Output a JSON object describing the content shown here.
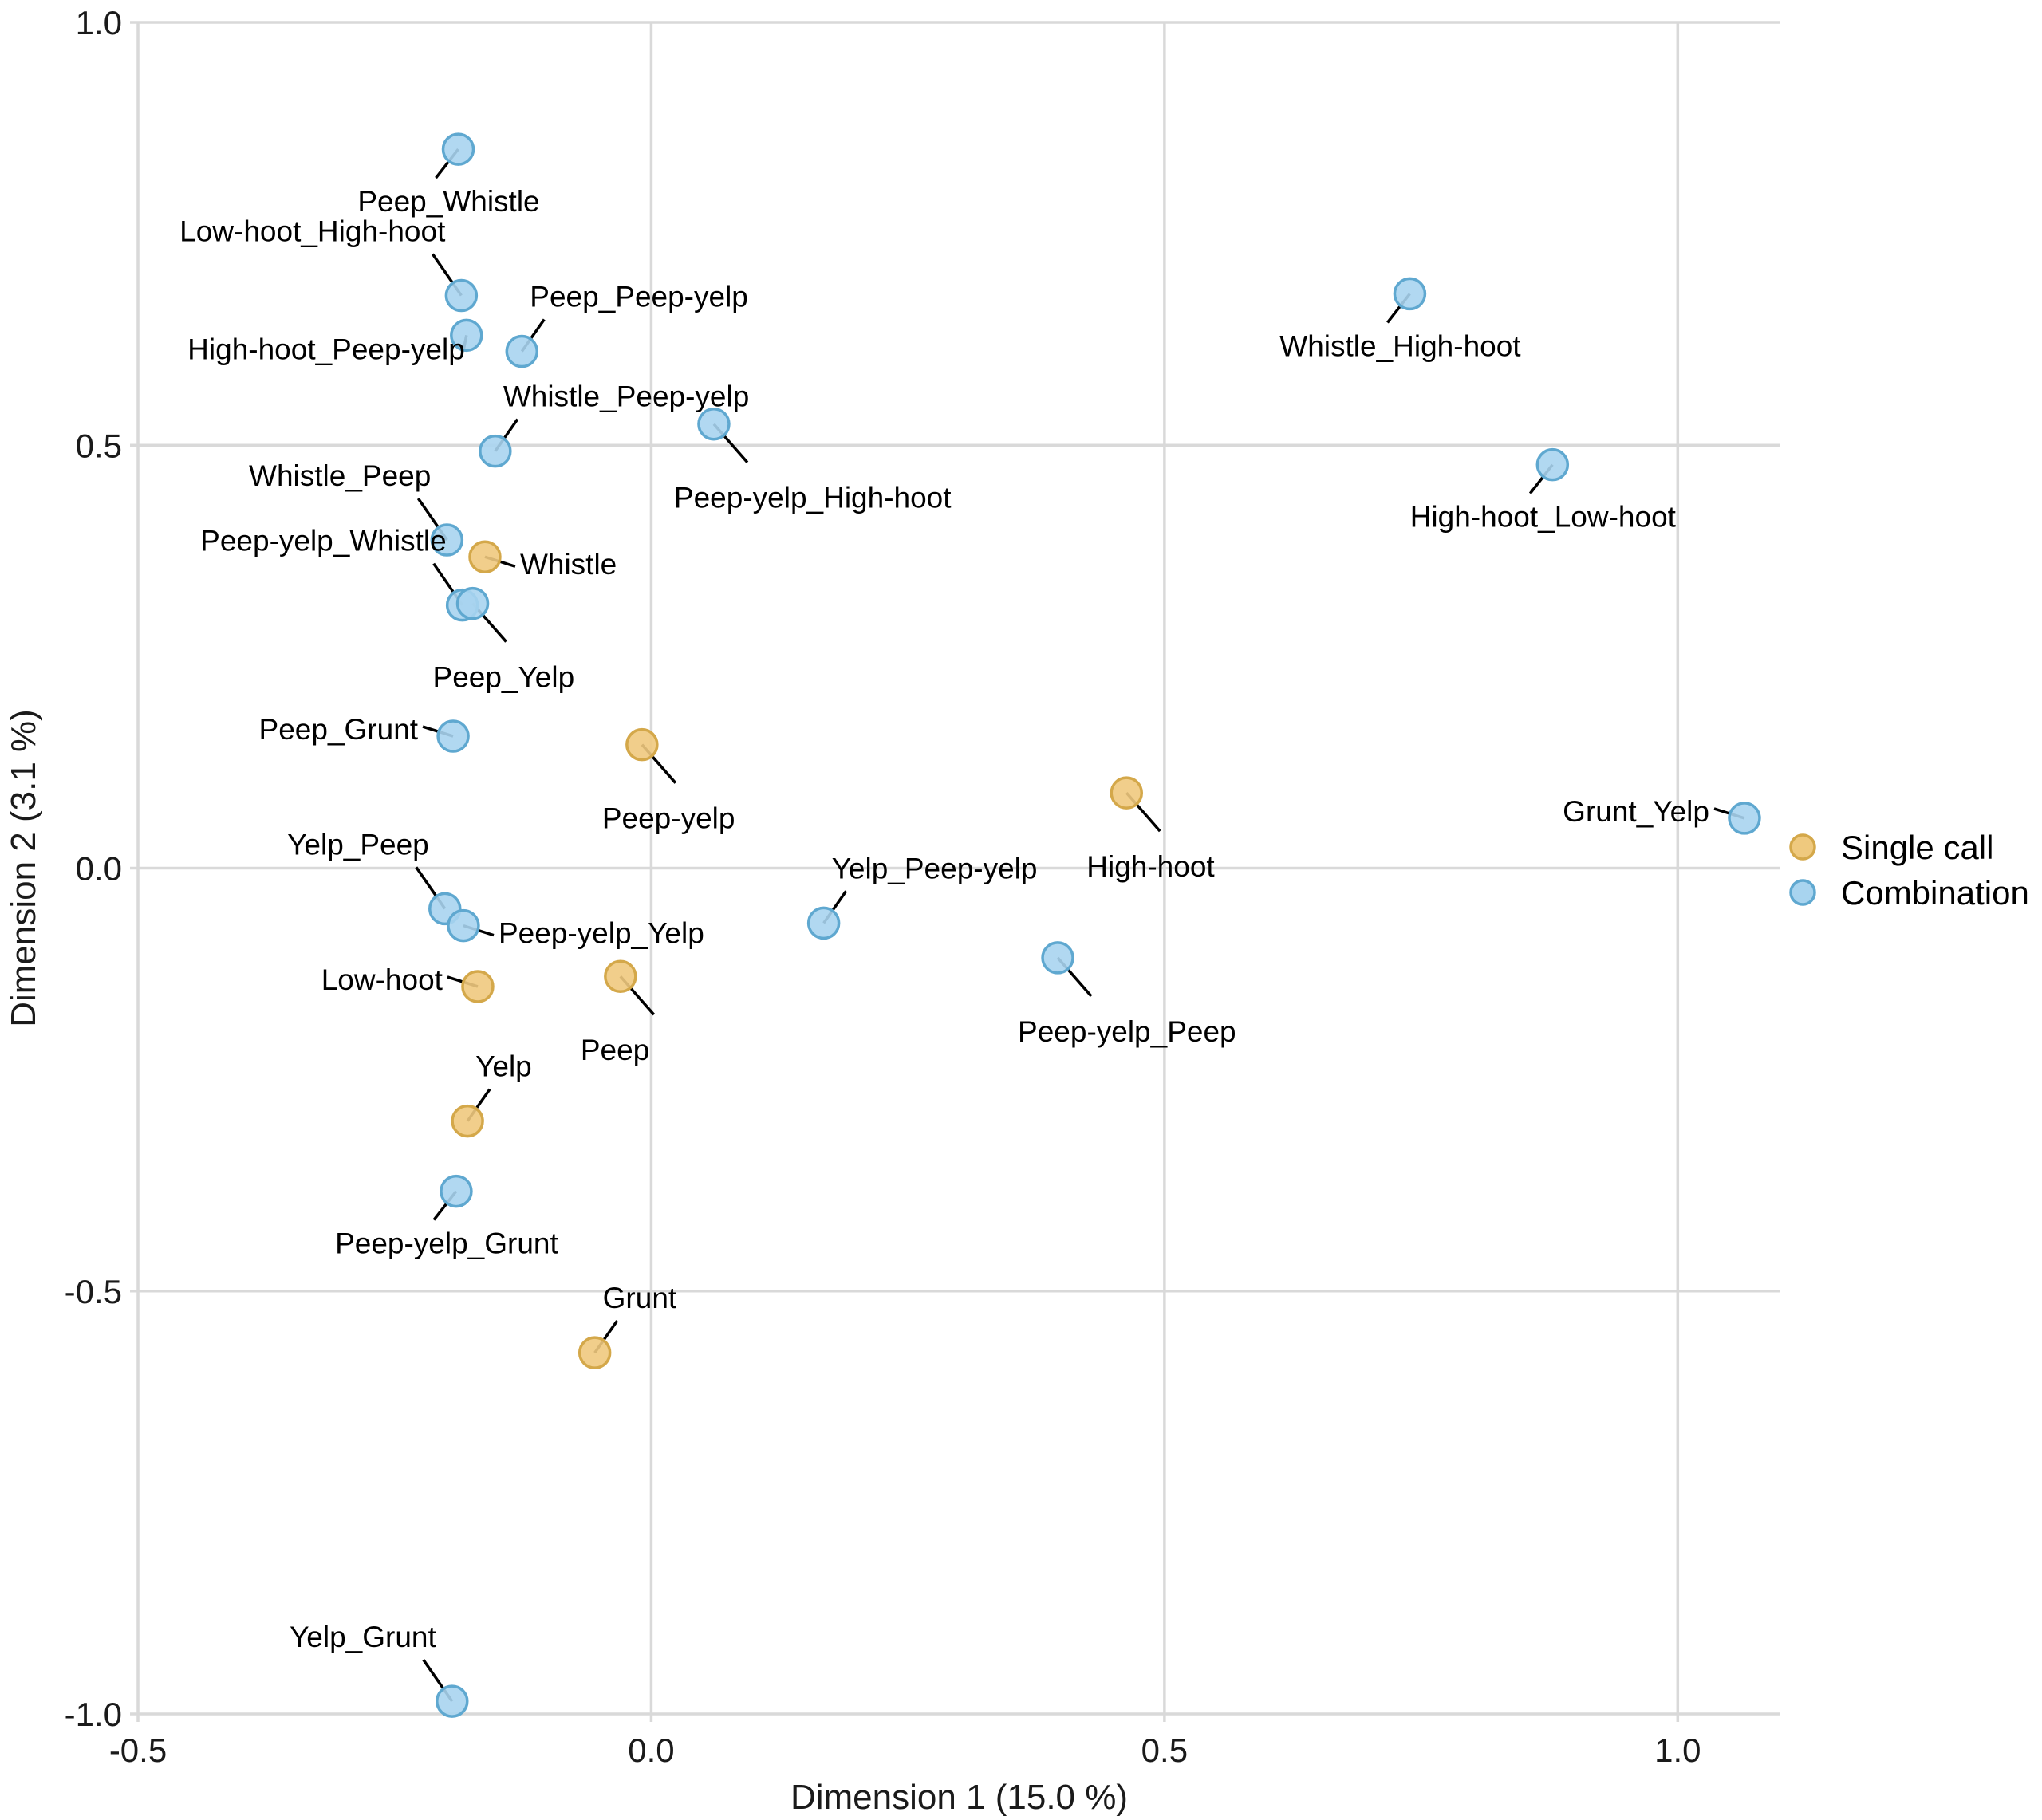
{
  "chart_data": {
    "type": "scatter",
    "title": "",
    "xlabel": "Dimension 1 (15.0 %)",
    "ylabel": "Dimension 2 (3.1 %)",
    "xlim": [
      -0.5,
      1.1
    ],
    "ylim": [
      -1.0,
      1.0
    ],
    "xticks": [
      -0.5,
      0.0,
      0.5,
      1.0
    ],
    "xtick_labels": [
      "-0.5",
      "0.0",
      "0.5",
      "1.0"
    ],
    "yticks": [
      -1.0,
      -0.5,
      0.0,
      0.5,
      1.0
    ],
    "ytick_labels": [
      "-1.0",
      "-0.5",
      "0.0",
      "0.5",
      "1.0"
    ],
    "grid": true,
    "legend": {
      "placement": "right",
      "entries": [
        {
          "name": "Single call",
          "fill": "#EFC97E",
          "stroke": "#D4A84A"
        },
        {
          "name": "Combination",
          "fill": "#A8D4EF",
          "stroke": "#5FA8D0"
        }
      ]
    },
    "series": [
      {
        "name": "Single call",
        "points": [
          {
            "label": "Whistle",
            "x": -0.162,
            "y": 0.368,
            "anchor": "right"
          },
          {
            "label": "Peep-yelp",
            "x": -0.009,
            "y": 0.146,
            "anchor": "below-right"
          },
          {
            "label": "High-hoot",
            "x": 0.463,
            "y": 0.089,
            "anchor": "below-right"
          },
          {
            "label": "Low-hoot",
            "x": -0.169,
            "y": -0.14,
            "anchor": "left"
          },
          {
            "label": "Peep",
            "x": -0.03,
            "y": -0.128,
            "anchor": "below-right"
          },
          {
            "label": "Yelp",
            "x": -0.179,
            "y": -0.299,
            "anchor": "above-right"
          },
          {
            "label": "Grunt",
            "x": -0.055,
            "y": -0.573,
            "anchor": "above-right"
          }
        ]
      },
      {
        "name": "Combination",
        "points": [
          {
            "label": "Peep_Whistle",
            "x": -0.188,
            "y": 0.85,
            "anchor": "below-left"
          },
          {
            "label": "Low-hoot_High-hoot",
            "x": -0.185,
            "y": 0.677,
            "anchor": "above-left"
          },
          {
            "label": "High-hoot_Peep-yelp",
            "x": -0.18,
            "y": 0.63,
            "anchor": "left-low"
          },
          {
            "label": "Peep_Peep-yelp",
            "x": -0.126,
            "y": 0.611,
            "anchor": "above-right"
          },
          {
            "label": "Whistle_High-hoot",
            "x": 0.739,
            "y": 0.679,
            "anchor": "below-left"
          },
          {
            "label": "Whistle_Peep-yelp",
            "x": -0.152,
            "y": 0.493,
            "anchor": "above-right"
          },
          {
            "label": "Peep-yelp_High-hoot",
            "x": 0.061,
            "y": 0.525,
            "anchor": "below-right"
          },
          {
            "label": "High-hoot_Low-hoot",
            "x": 0.878,
            "y": 0.477,
            "anchor": "below-left"
          },
          {
            "label": "Whistle_Peep",
            "x": -0.199,
            "y": 0.388,
            "anchor": "above-left"
          },
          {
            "label": "Peep-yelp_Whistle",
            "x": -0.184,
            "y": 0.311,
            "anchor": "above-left"
          },
          {
            "label": "Peep_Yelp",
            "x": -0.174,
            "y": 0.313,
            "anchor": "below-right"
          },
          {
            "label": "Peep_Grunt",
            "x": -0.193,
            "y": 0.156,
            "anchor": "left"
          },
          {
            "label": "Grunt_Yelp",
            "x": 1.065,
            "y": 0.059,
            "anchor": "left"
          },
          {
            "label": "Yelp_Peep",
            "x": -0.201,
            "y": -0.048,
            "anchor": "above-left"
          },
          {
            "label": "Peep-yelp_Yelp",
            "x": -0.183,
            "y": -0.068,
            "anchor": "right"
          },
          {
            "label": "Yelp_Peep-yelp",
            "x": 0.168,
            "y": -0.065,
            "anchor": "above-right"
          },
          {
            "label": "Peep-yelp_Peep",
            "x": 0.396,
            "y": -0.106,
            "anchor": "below-right"
          },
          {
            "label": "Peep-yelp_Grunt",
            "x": -0.19,
            "y": -0.382,
            "anchor": "below-left"
          },
          {
            "label": "Yelp_Grunt",
            "x": -0.194,
            "y": -0.985,
            "anchor": "above-left"
          }
        ]
      }
    ]
  }
}
